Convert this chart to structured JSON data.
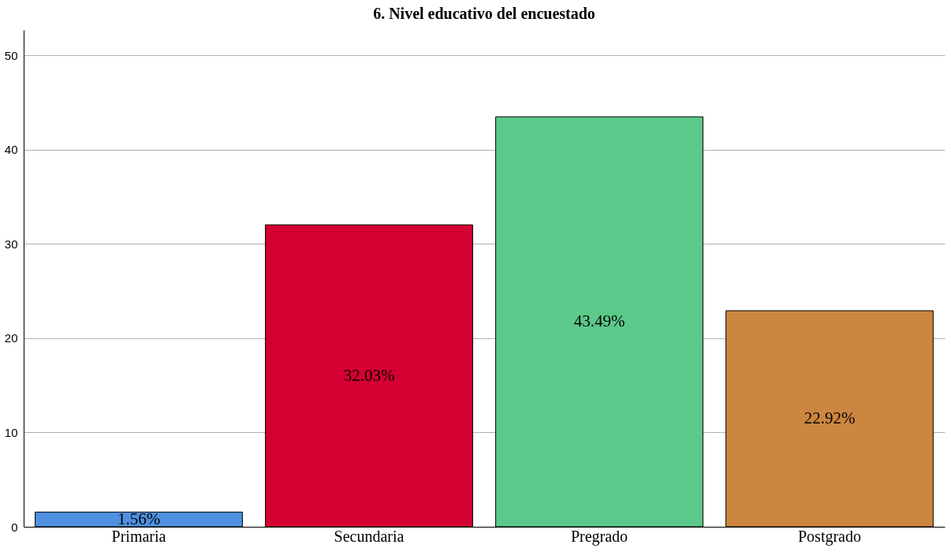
{
  "chart_data": {
    "type": "bar",
    "title": "6. Nivel educativo del encuestado",
    "categories": [
      "Primaria",
      "Secundaria",
      "Pregrado",
      "Postgrado"
    ],
    "values": [
      1.56,
      32.03,
      43.49,
      22.92
    ],
    "colors": [
      "#4f91e0",
      "#d50032",
      "#5bc98a",
      "#cc8640"
    ],
    "value_labels": [
      "1.56%",
      "32.03%",
      "43.49%",
      "22.92%"
    ],
    "ylim": [
      0,
      52.7
    ],
    "yticks": [
      0,
      10,
      20,
      30,
      40,
      50
    ],
    "grid": "y"
  }
}
